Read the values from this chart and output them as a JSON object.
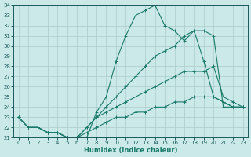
{
  "xlabel": "Humidex (Indice chaleur)",
  "xlim": [
    -0.5,
    23.5
  ],
  "ylim": [
    21,
    34
  ],
  "yticks": [
    21,
    22,
    23,
    24,
    25,
    26,
    27,
    28,
    29,
    30,
    31,
    32,
    33,
    34
  ],
  "xticks": [
    0,
    1,
    2,
    3,
    4,
    5,
    6,
    7,
    8,
    9,
    10,
    11,
    12,
    13,
    14,
    15,
    16,
    17,
    18,
    19,
    20,
    21,
    22,
    23
  ],
  "background_color": "#cce9e9",
  "grid_color": "#b0d0d0",
  "line_color": "#1a7a6a",
  "lines": [
    {
      "x": [
        0,
        1,
        2,
        3,
        4,
        5,
        6,
        7,
        8,
        9,
        10,
        11,
        12,
        13,
        14,
        15,
        16,
        17,
        18,
        19,
        20,
        21,
        22,
        23
      ],
      "y": [
        23,
        22,
        22,
        21.5,
        21.5,
        21,
        21,
        21,
        23.5,
        25,
        28.5,
        31,
        33,
        33.5,
        34,
        32,
        31.5,
        30.5,
        31.5,
        31.5,
        31,
        24,
        24,
        24
      ]
    },
    {
      "x": [
        0,
        1,
        2,
        3,
        4,
        5,
        6,
        7,
        8,
        9,
        10,
        11,
        12,
        13,
        14,
        15,
        16,
        17,
        18,
        19,
        20,
        21,
        22,
        23
      ],
      "y": [
        23,
        22,
        22,
        21.5,
        21.5,
        21,
        21,
        22,
        23,
        24,
        25,
        26,
        27,
        28,
        29,
        29.5,
        30,
        31,
        31.5,
        28.5,
        25,
        24.5,
        24,
        24
      ]
    },
    {
      "x": [
        0,
        1,
        2,
        3,
        4,
        5,
        6,
        7,
        8,
        9,
        10,
        11,
        12,
        13,
        14,
        15,
        16,
        17,
        18,
        19,
        20,
        21,
        22,
        23
      ],
      "y": [
        23,
        22,
        22,
        21.5,
        21.5,
        21,
        21,
        22,
        23,
        23.5,
        24,
        24.5,
        25,
        25.5,
        26,
        26.5,
        27,
        27.5,
        27.5,
        27.5,
        28,
        25,
        24.5,
        24
      ]
    },
    {
      "x": [
        0,
        1,
        2,
        3,
        4,
        5,
        6,
        7,
        8,
        9,
        10,
        11,
        12,
        13,
        14,
        15,
        16,
        17,
        18,
        19,
        20,
        21,
        22,
        23
      ],
      "y": [
        23,
        22,
        22,
        21.5,
        21.5,
        21,
        21,
        21.5,
        22,
        22.5,
        23,
        23,
        23.5,
        23.5,
        24,
        24,
        24.5,
        24.5,
        25,
        25,
        25,
        24.5,
        24,
        24
      ]
    }
  ]
}
